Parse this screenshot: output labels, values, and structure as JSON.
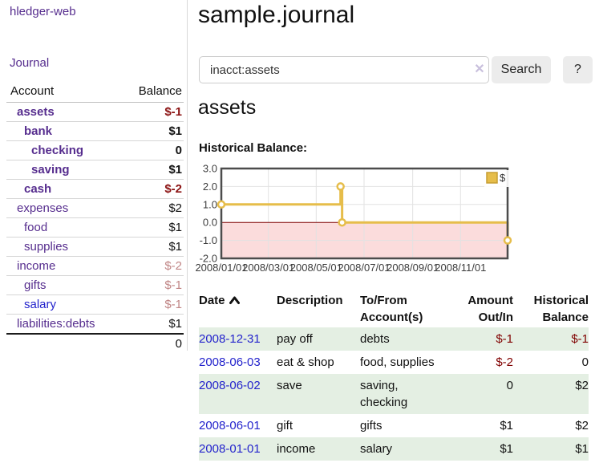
{
  "app_title": "hledger-web",
  "sidebar": {
    "journal_link": "Journal",
    "accounts": {
      "header_account": "Account",
      "header_balance": "Balance",
      "rows": [
        {
          "name": "assets",
          "level": 0,
          "bold": true,
          "link_color": "purple",
          "balance": "$-1",
          "balance_class": "neg"
        },
        {
          "name": "bank",
          "level": 1,
          "bold": true,
          "link_color": "purple",
          "balance": "$1",
          "balance_class": ""
        },
        {
          "name": "checking",
          "level": 2,
          "bold": true,
          "link_color": "purple",
          "balance": "0",
          "balance_class": ""
        },
        {
          "name": "saving",
          "level": 2,
          "bold": true,
          "link_color": "purple",
          "balance": "$1",
          "balance_class": ""
        },
        {
          "name": "cash",
          "level": 1,
          "bold": true,
          "link_color": "purple",
          "balance": "$-2",
          "balance_class": "neg"
        },
        {
          "name": "expenses",
          "level": 0,
          "bold": false,
          "link_color": "purple",
          "balance": "$2",
          "balance_class": ""
        },
        {
          "name": "food",
          "level": 1,
          "bold": false,
          "link_color": "purple",
          "balance": "$1",
          "balance_class": ""
        },
        {
          "name": "supplies",
          "level": 1,
          "bold": false,
          "link_color": "purple",
          "balance": "$1",
          "balance_class": ""
        },
        {
          "name": "income",
          "level": 0,
          "bold": false,
          "link_color": "purple",
          "balance": "$-2",
          "balance_class": "negdim"
        },
        {
          "name": "gifts",
          "level": 1,
          "bold": false,
          "link_color": "purple",
          "balance": "$-1",
          "balance_class": "negdim"
        },
        {
          "name": "salary",
          "level": 1,
          "bold": false,
          "link_color": "blue",
          "balance": "$-1",
          "balance_class": "negdim"
        },
        {
          "name": "liabilities:debts",
          "level": 0,
          "bold": false,
          "link_color": "purple",
          "balance": "$1",
          "balance_class": ""
        }
      ],
      "total": "0"
    }
  },
  "main": {
    "title": "sample.journal",
    "search": {
      "value": "inacct:assets",
      "clear_glyph": "✕",
      "search_button": "Search",
      "help_button": "?"
    },
    "account_heading": "assets",
    "section_label": "Historical Balance:"
  },
  "chart_data": {
    "type": "line",
    "step": true,
    "title": "Historical Balance",
    "legend": {
      "label": "$",
      "position": "top-right"
    },
    "x_range": [
      "2008-01-01",
      "2008-12-31"
    ],
    "ylim": [
      -2,
      3
    ],
    "y_tick_labels": [
      "3.0",
      "2.0",
      "1.0",
      "0.0",
      "-1.0",
      "-2.0"
    ],
    "x_tick_labels": [
      "2008/01/01",
      "2008/03/01",
      "2008/05/01",
      "2008/07/01",
      "2008/09/01",
      "2008/11/01"
    ],
    "grid": true,
    "line_color": "#e6bd4a",
    "negative_region_color": "#fbdcdc",
    "zero_line_color": "#7d0000",
    "series": [
      {
        "name": "$",
        "marker": "open-circle",
        "points": [
          {
            "x": "2008-01-01",
            "y": 1.0
          },
          {
            "x": "2008-06-01",
            "y": 2.0
          },
          {
            "x": "2008-06-03",
            "y": 0.0
          },
          {
            "x": "2008-12-31",
            "y": -1.0
          }
        ]
      }
    ]
  },
  "register": {
    "headers": {
      "date": "Date",
      "description": "Description",
      "accounts": "To/From Account(s)",
      "amount": "Amount Out/In",
      "balance": "Historical Balance"
    },
    "rows": [
      {
        "date": "2008-12-31",
        "description": "pay off",
        "accounts": "debts",
        "amount": "$-1",
        "amount_negative": true,
        "balance": "$-1",
        "balance_negative": true
      },
      {
        "date": "2008-06-03",
        "description": "eat & shop",
        "accounts": "food, supplies",
        "amount": "$-2",
        "amount_negative": true,
        "balance": "0",
        "balance_negative": false
      },
      {
        "date": "2008-06-02",
        "description": "save",
        "accounts": "saving,\nchecking",
        "amount": "0",
        "amount_negative": false,
        "balance": "$2",
        "balance_negative": false
      },
      {
        "date": "2008-06-01",
        "description": "gift",
        "accounts": "gifts",
        "amount": "$1",
        "amount_negative": false,
        "balance": "$2",
        "balance_negative": false
      },
      {
        "date": "2008-01-01",
        "description": "income",
        "accounts": "salary",
        "amount": "$1",
        "amount_negative": false,
        "balance": "$1",
        "balance_negative": false
      }
    ]
  }
}
